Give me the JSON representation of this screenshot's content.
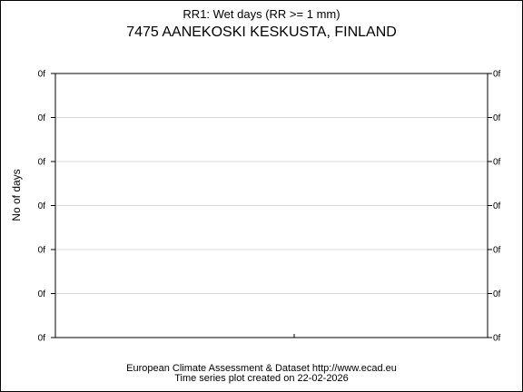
{
  "chart_data": {
    "type": "line",
    "title": "RR1: Wet days (RR >= 1 mm)",
    "subtitle": "7475 AANEKOSKI KESKUSTA, FINLAND",
    "xlabel": "",
    "ylabel": "No of days",
    "y_tick_labels": [
      "0f",
      "0f",
      "0f",
      "0f",
      "0f",
      "0f",
      "0f"
    ],
    "series": [],
    "grid": true,
    "right_axis_labels": true
  },
  "footer": {
    "line1": "European Climate Assessment & Dataset  http://www.ecad.eu",
    "line2": "Time series plot created on 22-02-2026"
  }
}
